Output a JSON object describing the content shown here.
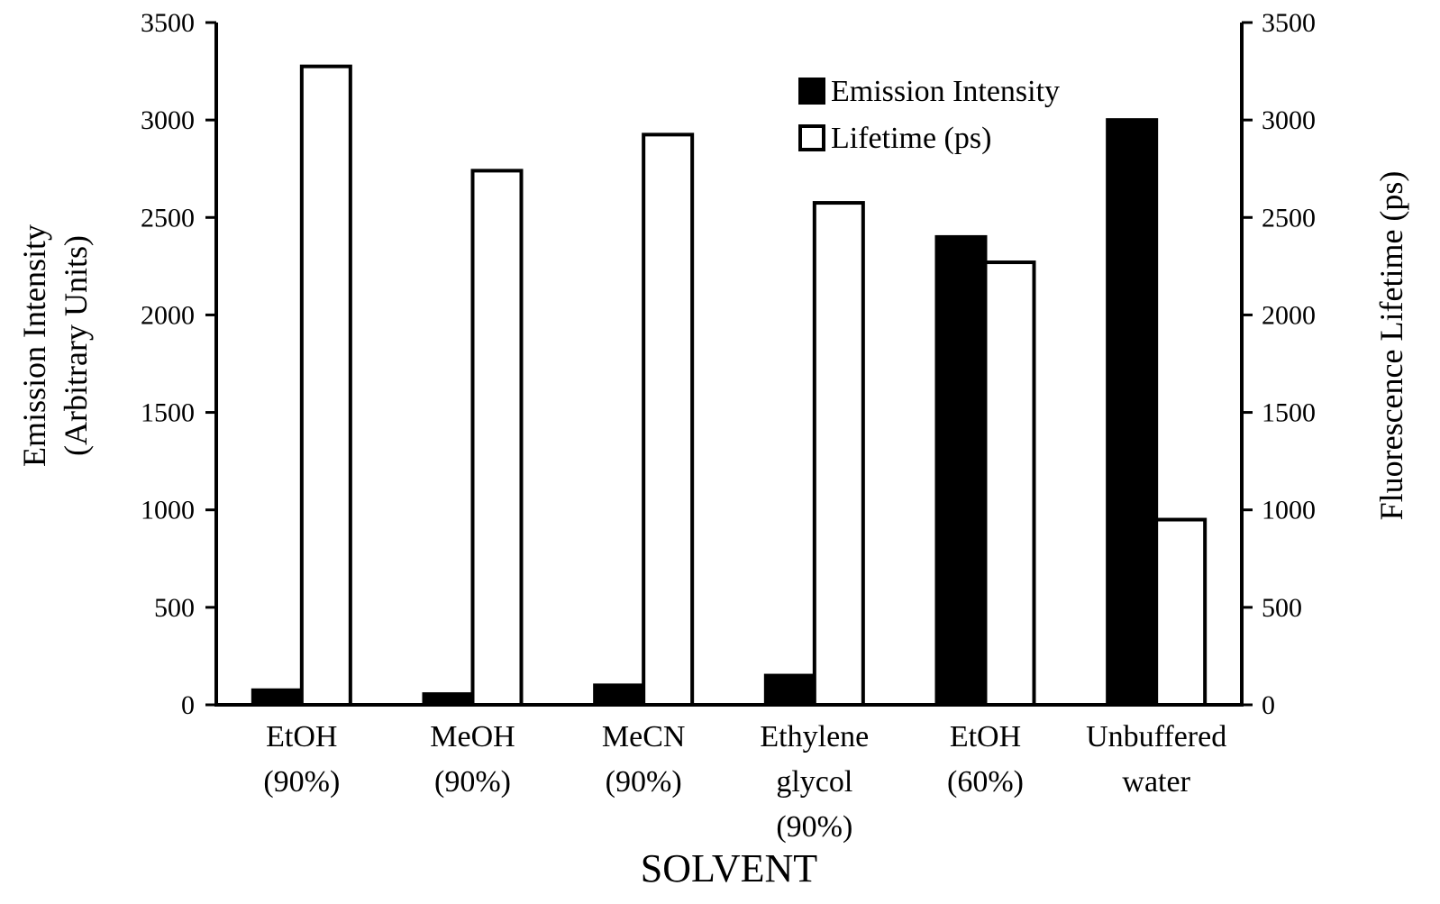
{
  "chart_data": {
    "type": "bar",
    "title": "",
    "xlabel": "SOLVENT",
    "ylabel_lines": [
      "Emission Intensity",
      "(Arbitrary Units)"
    ],
    "y2label": "Fluorescence Lifetime (ps)",
    "ylim": [
      0,
      3500
    ],
    "y2lim": [
      0,
      3500
    ],
    "yticks": [
      0,
      500,
      1000,
      1500,
      2000,
      2500,
      3000,
      3500
    ],
    "y2ticks": [
      0,
      500,
      1000,
      1500,
      2000,
      2500,
      3000,
      3500
    ],
    "grid": false,
    "legend_position": "top-right",
    "categories": [
      [
        "EtOH",
        "(90%)"
      ],
      [
        "MeOH",
        "(90%)"
      ],
      [
        "MeCN",
        "(90%)"
      ],
      [
        "Ethylene",
        "glycol",
        "(90%)"
      ],
      [
        "EtOH",
        "(60%)"
      ],
      [
        "Unbuffered",
        "water"
      ]
    ],
    "series": [
      {
        "name": "Emission Intensity",
        "axis": "left",
        "fill": "#000000",
        "values": [
          75,
          55,
          100,
          150,
          2400,
          3000
        ]
      },
      {
        "name": "Lifetime (ps)",
        "axis": "right",
        "fill": "#ffffff",
        "values": [
          3275,
          2740,
          2925,
          2575,
          2270,
          950
        ]
      }
    ]
  }
}
